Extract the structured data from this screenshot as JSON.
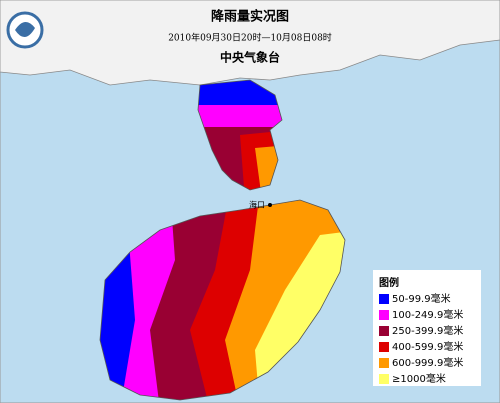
{
  "header": {
    "title": "降雨量实况图",
    "subtitle": "2010年09月30日20时—10月08日08时",
    "agency": "中央气象台"
  },
  "map": {
    "city_label": "海口"
  },
  "legend": {
    "title": "图例",
    "items": [
      {
        "label": "50-99.9毫米",
        "color": "#0000ff"
      },
      {
        "label": "100-249.9毫米",
        "color": "#ff00ff"
      },
      {
        "label": "250-399.9毫米",
        "color": "#990033"
      },
      {
        "label": "400-599.9毫米",
        "color": "#dd0000"
      },
      {
        "label": "600-999.9毫米",
        "color": "#ff9900"
      },
      {
        "label": "≥1000毫米",
        "color": "#ffff66"
      }
    ]
  }
}
